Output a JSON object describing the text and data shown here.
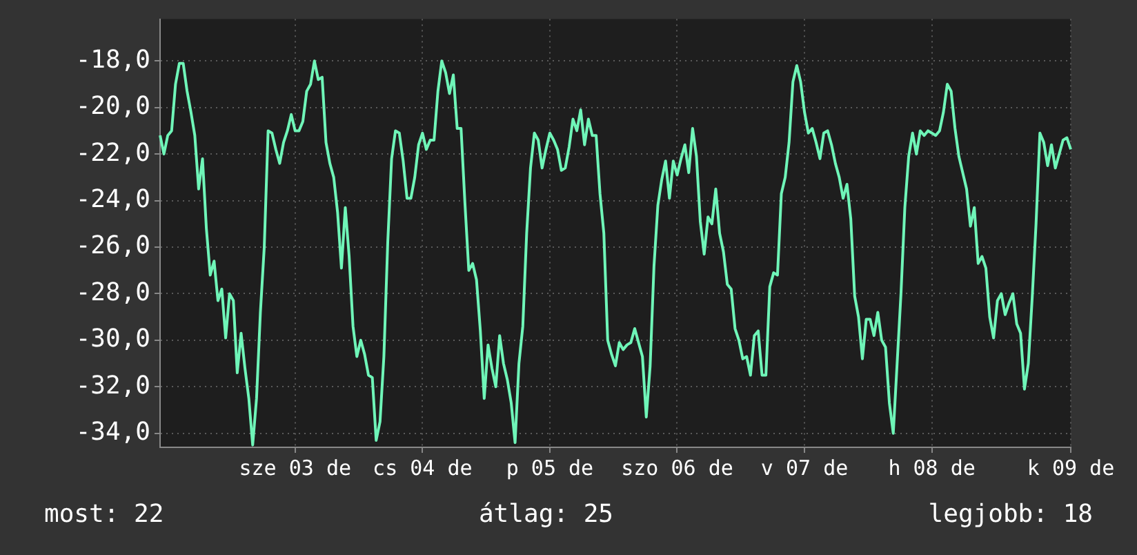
{
  "chart_data": {
    "type": "line",
    "categories": [
      null,
      null,
      null,
      null,
      null,
      null,
      null,
      null,
      null,
      null,
      null,
      null,
      null,
      null,
      null,
      null,
      null,
      null,
      null,
      null,
      null,
      null,
      null,
      null,
      null,
      null,
      null,
      null,
      null,
      null,
      null,
      null,
      null,
      null,
      null,
      "sze 03 de",
      null,
      null,
      null,
      null,
      null,
      null,
      null,
      null,
      null,
      null,
      null,
      null,
      null,
      null,
      null,
      null,
      null,
      null,
      null,
      null,
      null,
      null,
      null,
      null,
      null,
      null,
      null,
      null,
      null,
      null,
      null,
      null,
      "cs 04 de",
      null,
      null,
      null,
      null,
      null,
      null,
      null,
      null,
      null,
      null,
      null,
      null,
      null,
      null,
      null,
      null,
      null,
      null,
      null,
      null,
      null,
      null,
      null,
      null,
      null,
      null,
      null,
      null,
      null,
      null,
      null,
      null,
      "p 05 de",
      null,
      null,
      null,
      null,
      null,
      null,
      null,
      null,
      null,
      null,
      null,
      null,
      null,
      null,
      null,
      null,
      null,
      null,
      null,
      null,
      null,
      null,
      null,
      null,
      null,
      null,
      null,
      null,
      null,
      null,
      null,
      null,
      "szo 06 de",
      null,
      null,
      null,
      null,
      null,
      null,
      null,
      null,
      null,
      null,
      null,
      null,
      null,
      null,
      null,
      null,
      null,
      null,
      null,
      null,
      null,
      null,
      null,
      null,
      null,
      null,
      null,
      null,
      null,
      null,
      null,
      null,
      "v 07 de",
      null,
      null,
      null,
      null,
      null,
      null,
      null,
      null,
      null,
      null,
      null,
      null,
      null,
      null,
      null,
      null,
      null,
      null,
      null,
      null,
      null,
      null,
      null,
      null,
      null,
      null,
      null,
      null,
      null,
      null,
      null,
      null,
      "h 08 de",
      null,
      null,
      null,
      null,
      null,
      null,
      null,
      null,
      null,
      null,
      null,
      null,
      null,
      null,
      null,
      null,
      null,
      null,
      null,
      null,
      null,
      null,
      null,
      null,
      null,
      null,
      null,
      null,
      null,
      null,
      null,
      null,
      null,
      null,
      null,
      "k 09 de"
    ],
    "values": [
      -21.2,
      -22.0,
      -21.2,
      -21.0,
      -19.0,
      -18.1,
      -18.1,
      -19.3,
      -20.2,
      -21.2,
      -23.5,
      -22.2,
      -25.2,
      -27.2,
      -26.6,
      -28.3,
      -27.8,
      -29.9,
      -28.0,
      -28.3,
      -31.4,
      -29.7,
      -31.2,
      -32.5,
      -34.5,
      -32.5,
      -28.8,
      -26.0,
      -21.0,
      -21.1,
      -21.8,
      -22.4,
      -21.5,
      -21.0,
      -20.3,
      -21.0,
      -21.0,
      -20.6,
      -19.3,
      -19.0,
      -18.0,
      -18.8,
      -18.7,
      -21.5,
      -22.4,
      -23.0,
      -24.5,
      -26.9,
      -24.3,
      -26.4,
      -29.4,
      -30.7,
      -30.0,
      -30.6,
      -31.5,
      -31.6,
      -34.3,
      -33.5,
      -30.7,
      -25.8,
      -22.2,
      -21.0,
      -21.1,
      -22.3,
      -23.9,
      -23.9,
      -23.0,
      -21.6,
      -21.1,
      -21.8,
      -21.4,
      -21.4,
      -19.3,
      -18.0,
      -18.5,
      -19.4,
      -18.6,
      -20.9,
      -20.9,
      -24.1,
      -27.0,
      -26.7,
      -27.4,
      -29.6,
      -32.5,
      -30.2,
      -31.2,
      -32.0,
      -29.8,
      -31.0,
      -31.7,
      -32.7,
      -34.4,
      -31.0,
      -29.4,
      -25.4,
      -22.6,
      -21.1,
      -21.4,
      -22.6,
      -21.8,
      -21.1,
      -21.4,
      -21.8,
      -22.7,
      -22.6,
      -21.7,
      -20.5,
      -21.0,
      -20.1,
      -21.6,
      -20.5,
      -21.2,
      -21.2,
      -23.7,
      -25.4,
      -30.0,
      -30.6,
      -31.1,
      -30.1,
      -30.4,
      -30.2,
      -30.1,
      -29.5,
      -30.1,
      -30.7,
      -33.3,
      -31.1,
      -26.8,
      -24.2,
      -23.1,
      -22.3,
      -23.9,
      -22.3,
      -22.9,
      -22.2,
      -21.6,
      -22.8,
      -20.9,
      -22.1,
      -24.9,
      -26.3,
      -24.7,
      -25.0,
      -23.5,
      -25.4,
      -26.2,
      -27.6,
      -27.8,
      -29.5,
      -30.0,
      -30.8,
      -30.7,
      -31.5,
      -29.8,
      -29.6,
      -31.5,
      -31.5,
      -27.7,
      -27.1,
      -27.2,
      -23.7,
      -23.0,
      -21.5,
      -18.9,
      -18.2,
      -18.9,
      -20.2,
      -21.1,
      -20.9,
      -21.5,
      -22.2,
      -21.1,
      -21.0,
      -21.6,
      -22.4,
      -23.0,
      -23.9,
      -23.3,
      -24.8,
      -28.1,
      -29.0,
      -30.8,
      -29.1,
      -29.1,
      -29.8,
      -28.8,
      -30.0,
      -30.3,
      -32.7,
      -34.0,
      -31.0,
      -28.0,
      -24.3,
      -22.1,
      -21.1,
      -22.0,
      -21.0,
      -21.2,
      -21.0,
      -21.1,
      -21.2,
      -21.0,
      -20.2,
      -19.0,
      -19.3,
      -20.9,
      -22.1,
      -22.8,
      -23.5,
      -25.1,
      -24.3,
      -26.7,
      -26.4,
      -26.9,
      -29.0,
      -29.9,
      -28.3,
      -28.0,
      -28.9,
      -28.4,
      -28.0,
      -29.3,
      -29.7,
      -32.1,
      -31.0,
      -28.2,
      -25.0,
      -21.1,
      -21.5,
      -22.5,
      -21.6,
      -22.6,
      -22.0,
      -21.4,
      -21.3,
      -21.8
    ],
    "color": "#6ff5b8",
    "ylim": [
      -34.6,
      -16.2
    ],
    "yticks": [
      {
        "value": -34,
        "label": "-34,0"
      },
      {
        "value": -32,
        "label": "-32,0"
      },
      {
        "value": -30,
        "label": "-30,0"
      },
      {
        "value": -28,
        "label": "-28,0"
      },
      {
        "value": -26,
        "label": "-26,0"
      },
      {
        "value": -24,
        "label": "-24,0"
      },
      {
        "value": -22,
        "label": "-22,0"
      },
      {
        "value": -20,
        "label": "-20,0"
      },
      {
        "value": -18,
        "label": "-18,0"
      }
    ],
    "grid": true,
    "annotations": [
      "most: 22",
      "átlag: 25",
      "legjobb: 18"
    ]
  }
}
